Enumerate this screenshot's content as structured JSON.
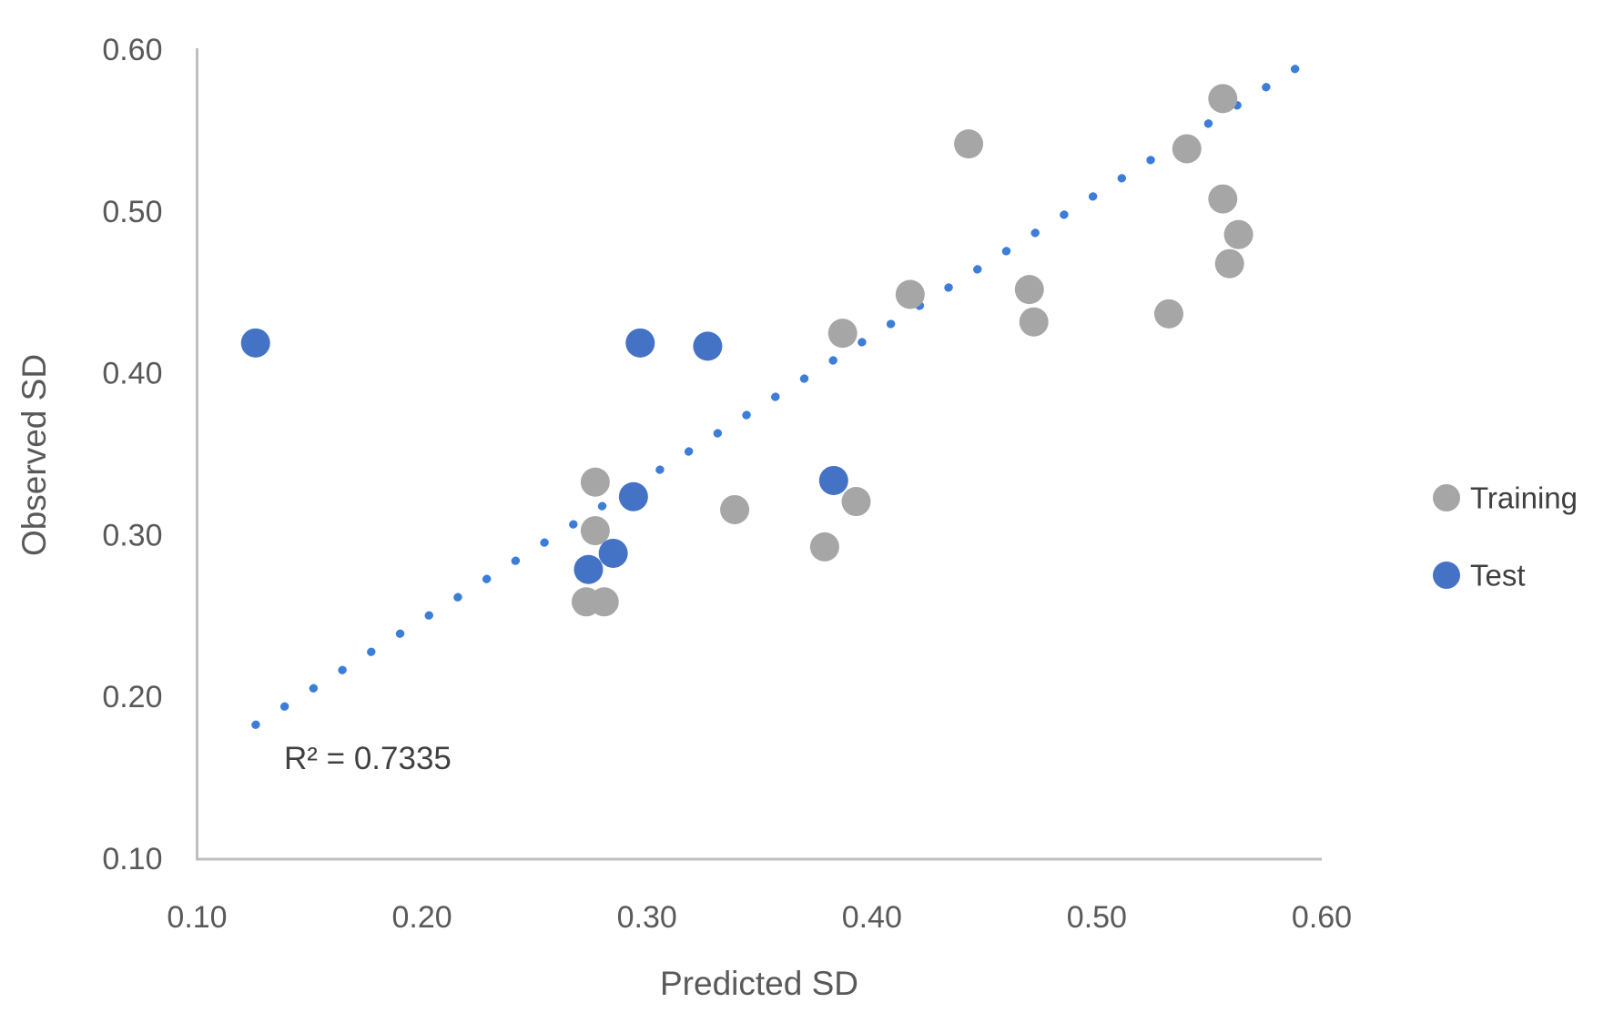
{
  "chart_data": {
    "type": "scatter",
    "title": "",
    "xlabel": "Predicted SD",
    "ylabel": "Observed SD",
    "xlim": [
      0.1,
      0.6
    ],
    "ylim": [
      0.1,
      0.6
    ],
    "xticks": [
      0.1,
      0.2,
      0.3,
      0.4,
      0.5,
      0.6
    ],
    "yticks": [
      0.1,
      0.2,
      0.3,
      0.4,
      0.5,
      0.6
    ],
    "xtick_labels": [
      "0.10",
      "0.20",
      "0.30",
      "0.40",
      "0.50",
      "0.60"
    ],
    "ytick_labels": [
      "0.10",
      "0.20",
      "0.30",
      "0.40",
      "0.50",
      "0.60"
    ],
    "grid": false,
    "legend_position": "right",
    "r2_label": "R² = 0.7335",
    "series": [
      {
        "name": "Training",
        "color": "#A6A6A6",
        "points": [
          [
            0.277,
            0.333
          ],
          [
            0.277,
            0.303
          ],
          [
            0.273,
            0.259
          ],
          [
            0.281,
            0.259
          ],
          [
            0.339,
            0.316
          ],
          [
            0.393,
            0.321
          ],
          [
            0.379,
            0.293
          ],
          [
            0.387,
            0.425
          ],
          [
            0.417,
            0.449
          ],
          [
            0.443,
            0.542
          ],
          [
            0.47,
            0.452
          ],
          [
            0.472,
            0.432
          ],
          [
            0.532,
            0.437
          ],
          [
            0.54,
            0.539
          ],
          [
            0.556,
            0.57
          ],
          [
            0.556,
            0.508
          ],
          [
            0.563,
            0.486
          ],
          [
            0.559,
            0.468
          ]
        ]
      },
      {
        "name": "Test",
        "color": "#4472C4",
        "points": [
          [
            0.126,
            0.419
          ],
          [
            0.297,
            0.419
          ],
          [
            0.327,
            0.417
          ],
          [
            0.294,
            0.324
          ],
          [
            0.285,
            0.289
          ],
          [
            0.274,
            0.279
          ],
          [
            0.383,
            0.334
          ]
        ]
      }
    ],
    "trendline": {
      "style": "dotted",
      "color": "#3C7DD9",
      "start": [
        0.126,
        0.183
      ],
      "end": [
        0.598,
        0.597
      ]
    },
    "axis_color": "#BFBFBF",
    "tick_text_color": "#595959"
  }
}
